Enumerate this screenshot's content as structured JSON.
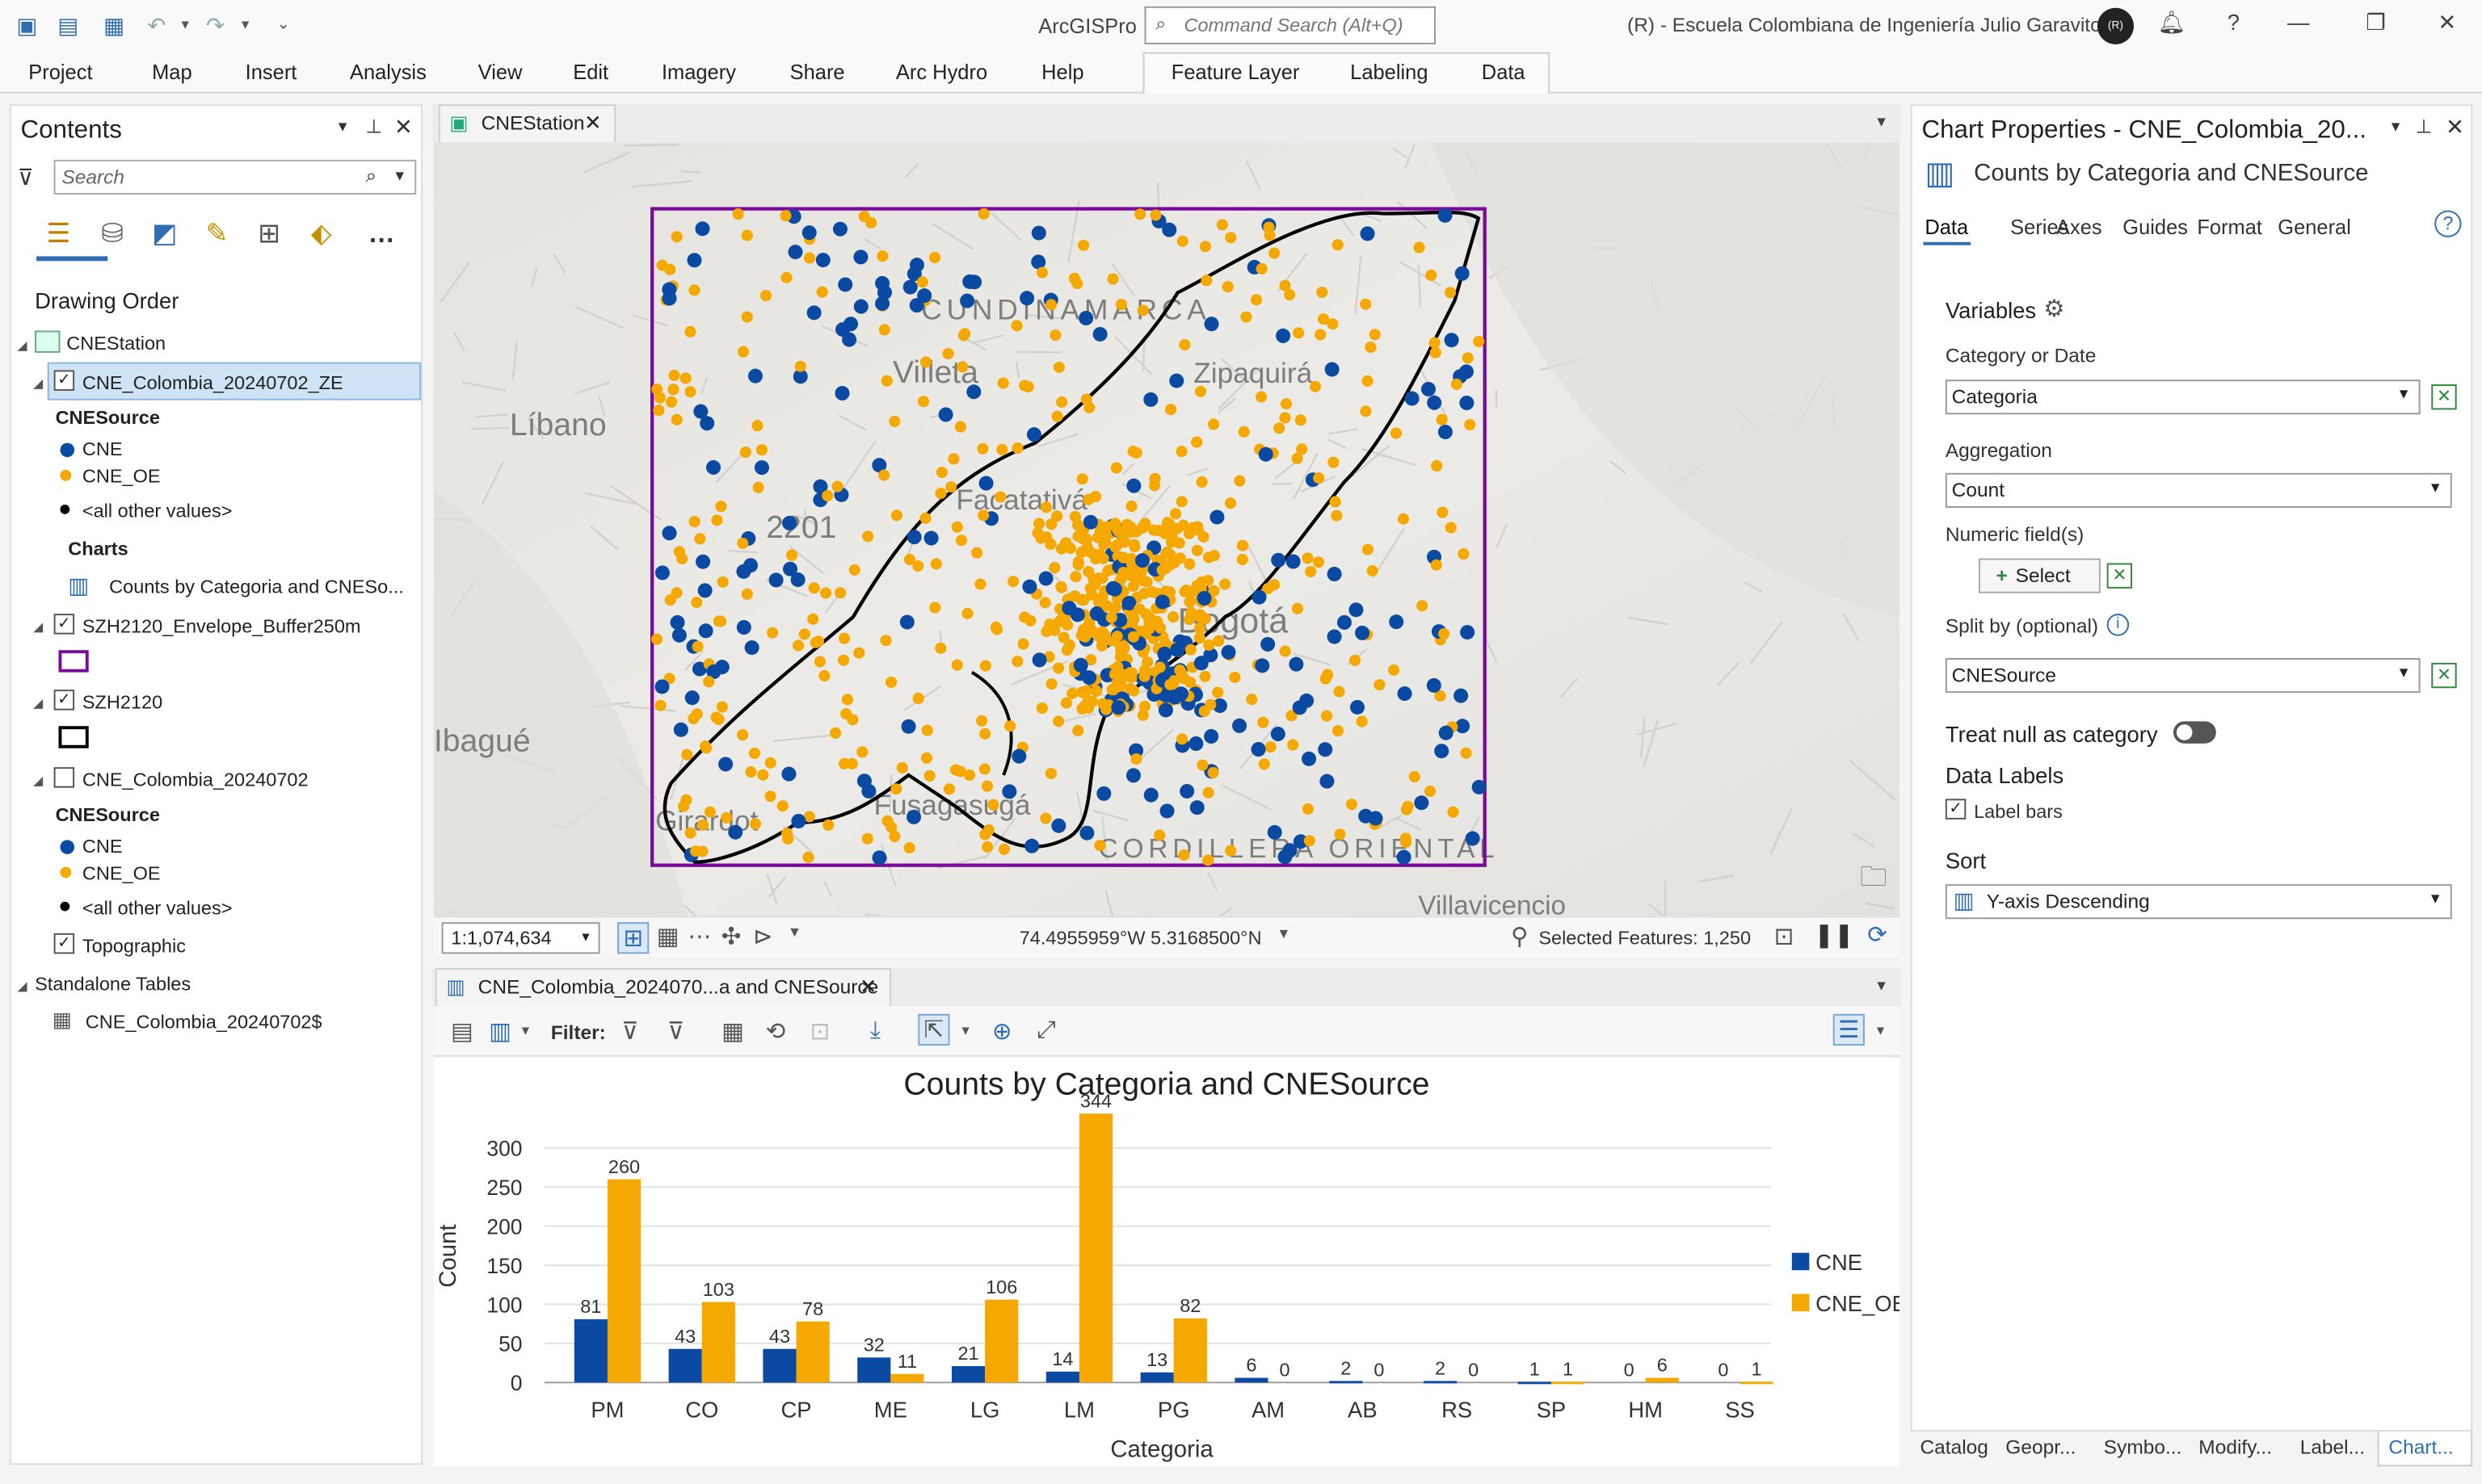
{
  "app": {
    "name": "ArcGISPro",
    "command_search_placeholder": "Command Search (Alt+Q)",
    "organization": "(R) - Escuela Colombiana de Ingeniería Julio Garavito",
    "avatar_initials": "(R)"
  },
  "ribbon": {
    "tabs": [
      "Project",
      "Map",
      "Insert",
      "Analysis",
      "View",
      "Edit",
      "Imagery",
      "Share",
      "Arc Hydro",
      "Help"
    ],
    "context_tabs": [
      "Feature Layer",
      "Labeling",
      "Data"
    ]
  },
  "contents": {
    "title": "Contents",
    "search_placeholder": "Search",
    "drawing_order_label": "Drawing Order",
    "map_name": "CNEStation",
    "layer1_name": "CNE_Colombia_20240702_ZE",
    "layer1_field": "CNESource",
    "legend_cne": "CNE",
    "legend_cne_oe": "CNE_OE",
    "legend_other": "<all other values>",
    "charts_label": "Charts",
    "chart_item": "Counts by Categoria and CNESo...",
    "layer2_name": "SZH2120_Envelope_Buffer250m",
    "layer3_name": "SZH2120",
    "layer4_name": "CNE_Colombia_20240702",
    "layer4_field": "CNESource",
    "layer5_name": "Topographic",
    "standalone_label": "Standalone Tables",
    "table_name": "CNE_Colombia_20240702$"
  },
  "map": {
    "tab_label": "CNEStation",
    "scale": "1:1,074,634",
    "coordinates": "74.4955959°W 5.3168500°N",
    "selected_features": "Selected Features: 1,250",
    "place_labels": [
      "Líbano",
      "Villeta",
      "Zipaquirá",
      "Facatativá",
      "Bogotá",
      "2201",
      "Ibagué",
      "Girardot",
      "Fusagasugá",
      "CUNDINAMARCA",
      "CORDILLERA ORIENTAL",
      "Villavicencio"
    ],
    "colors": {
      "cne": "#0b4aa2",
      "cne_oe": "#f5a800",
      "envelope": "#7a0a9c",
      "basin": "#000000"
    }
  },
  "chart_view": {
    "tab_label": "CNE_Colombia_2024070...a and CNESource",
    "filter_label": "Filter:"
  },
  "chart_data": {
    "type": "bar",
    "title": "Counts by Categoria and CNESource",
    "xlabel": "Categoria",
    "ylabel": "Count",
    "ylim": [
      0,
      344
    ],
    "yticks": [
      0,
      50,
      100,
      150,
      200,
      250,
      300
    ],
    "categories": [
      "PM",
      "CO",
      "CP",
      "ME",
      "LG",
      "LM",
      "PG",
      "AM",
      "AB",
      "RS",
      "SP",
      "HM",
      "SS"
    ],
    "series": [
      {
        "name": "CNE",
        "color": "#0b4aa2",
        "values": [
          81,
          43,
          43,
          32,
          21,
          14,
          13,
          6,
          2,
          2,
          1,
          0,
          0
        ]
      },
      {
        "name": "CNE_OE",
        "color": "#f5a800",
        "values": [
          260,
          103,
          78,
          11,
          106,
          344,
          82,
          0,
          0,
          0,
          1,
          6,
          1
        ]
      }
    ],
    "legend_position": "right",
    "grid": true
  },
  "props": {
    "title": "Chart Properties - CNE_Colombia_20...",
    "subtitle": "Counts by Categoria and CNESource",
    "tabs": [
      "Data",
      "Series",
      "Axes",
      "Guides",
      "Format",
      "General"
    ],
    "variables_label": "Variables",
    "category_label": "Category or Date",
    "category_value": "Categoria",
    "aggregation_label": "Aggregation",
    "aggregation_value": "Count",
    "numeric_label": "Numeric field(s)",
    "select_button": "Select",
    "split_label": "Split by (optional)",
    "split_value": "CNESource",
    "treat_null_label": "Treat null as category",
    "data_labels_label": "Data Labels",
    "label_bars_label": "Label bars",
    "sort_label": "Sort",
    "sort_value": "Y-axis Descending"
  },
  "bottom_tabs": [
    "Catalog",
    "Geopr...",
    "Symbo...",
    "Modify...",
    "Label...",
    "Chart..."
  ]
}
